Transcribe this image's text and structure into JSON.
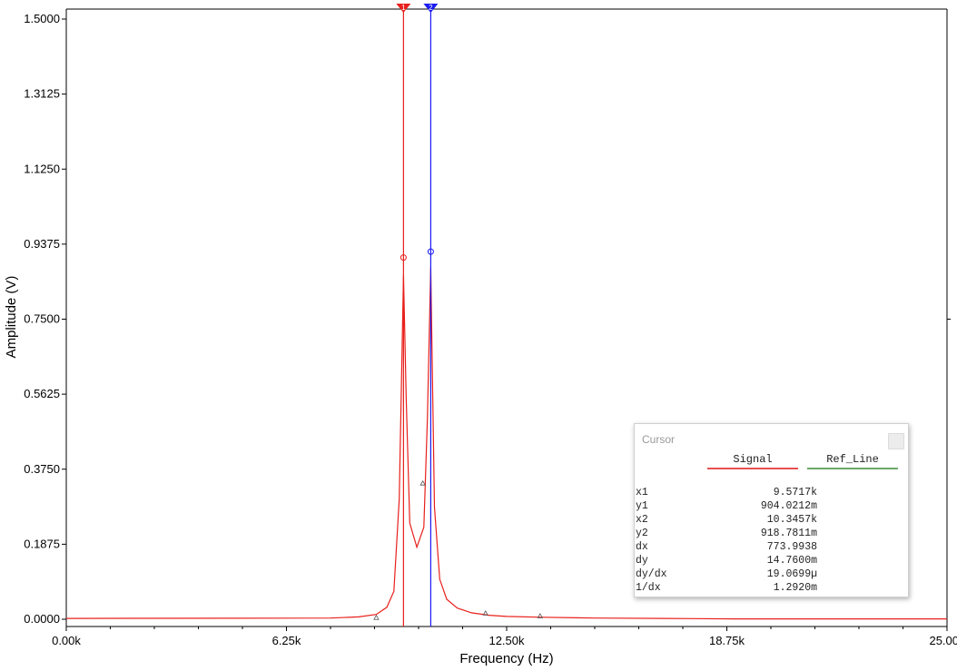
{
  "chart_data": {
    "type": "line",
    "title": "",
    "xlabel": "Frequency (Hz)",
    "ylabel": "Amplitude (V)",
    "xlim": [
      0,
      25000
    ],
    "ylim": [
      0,
      1.5
    ],
    "x_ticks": [
      "0.00k",
      "6.25k",
      "12.50k",
      "18.75k",
      "25.00k"
    ],
    "y_ticks": [
      "0.0000",
      "0.1875",
      "0.3750",
      "0.5625",
      "0.7500",
      "0.9375",
      "1.1250",
      "1.3125",
      "1.5000"
    ],
    "grid": false,
    "series": [
      {
        "name": "Signal",
        "color": "#e8201c",
        "x": [
          0,
          7500,
          8300,
          8800,
          9100,
          9300,
          9450,
          9571.7,
          9650,
          9750,
          9950,
          10150,
          10250,
          10345.7,
          10450,
          10600,
          10800,
          11100,
          11500,
          12000,
          12500,
          13500,
          15000,
          17000,
          19000,
          22000,
          25000
        ],
        "y": [
          0.002,
          0.003,
          0.006,
          0.012,
          0.03,
          0.07,
          0.3,
          0.86,
          0.55,
          0.24,
          0.18,
          0.23,
          0.5,
          0.88,
          0.28,
          0.1,
          0.05,
          0.028,
          0.016,
          0.01,
          0.007,
          0.005,
          0.003,
          0.002,
          0.001,
          0.001,
          0.001
        ]
      }
    ],
    "markers": [
      {
        "x": 8800,
        "y": 0.004
      },
      {
        "x": 10120,
        "y": 0.34
      },
      {
        "x": 11900,
        "y": 0.015
      },
      {
        "x": 13450,
        "y": 0.008
      }
    ],
    "cursors": [
      {
        "name": "Cursor 1",
        "label": "1",
        "x": 9571.7,
        "y": 0.904,
        "color": "#e8201c"
      },
      {
        "name": "Cursor 2",
        "label": "2",
        "x": 10345.7,
        "y": 0.9188,
        "color": "#1a1af0"
      }
    ]
  },
  "cursor_panel": {
    "title": "Cursor",
    "series": [
      {
        "label": "Signal",
        "color": "#e85050"
      },
      {
        "label": "Ref_Line",
        "color": "#6aa86a"
      }
    ],
    "rows": [
      {
        "key": "x1",
        "value": "9.5717k"
      },
      {
        "key": "y1",
        "value": "904.0212m"
      },
      {
        "key": "x2",
        "value": "10.3457k"
      },
      {
        "key": "y2",
        "value": "918.7811m"
      },
      {
        "key": "dx",
        "value": "773.9938"
      },
      {
        "key": "dy",
        "value": "14.7600m"
      },
      {
        "key": "dy/dx",
        "value": "19.0699µ"
      },
      {
        "key": "1/dx",
        "value": "1.2920m"
      }
    ]
  }
}
